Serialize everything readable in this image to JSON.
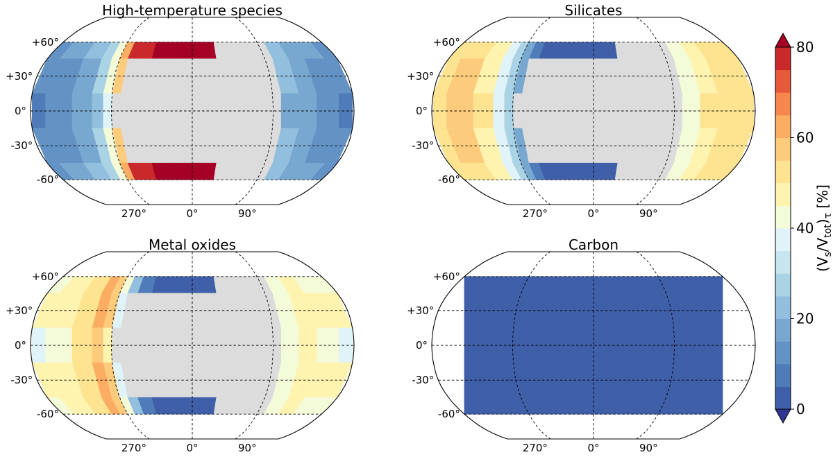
{
  "chart_data": {
    "type": "heatmap",
    "projection": "Robinson",
    "colormap": "RdYlBu_r (discrete, 5% steps)",
    "night_side_color": "#dcdcdc",
    "clevels": [
      0,
      5,
      10,
      15,
      20,
      25,
      30,
      35,
      40,
      45,
      50,
      55,
      60,
      65,
      70,
      75,
      80
    ],
    "colors": [
      "#313695",
      "#3f5fa8",
      "#4f7cb8",
      "#6392c4",
      "#78a8d0",
      "#91bfdd",
      "#aad3e6",
      "#c6e5ef",
      "#e0f3f8",
      "#f4fbd9",
      "#fff3b0",
      "#fee491",
      "#fdcb7c",
      "#fbad63",
      "#f4864e",
      "#e55a3a",
      "#c9292b",
      "#a50026"
    ],
    "longitude_ticks": [
      "270°",
      "0°",
      "90°"
    ],
    "latitude_ticks": [
      "+60°",
      "+30°",
      "0°",
      "-30°",
      "-60°"
    ],
    "colorbar": {
      "label": "(V_s/V_tot)_τ [%]",
      "ticks": [
        "0",
        "20",
        "40",
        "60",
        "80"
      ],
      "tick_values": [
        0,
        20,
        40,
        60,
        80
      ],
      "range": [
        0,
        80
      ],
      "extend": "both"
    },
    "panels": [
      {
        "title": "High-temperature species",
        "lon": [
          -180,
          -150,
          -120,
          -105,
          -95,
          -85,
          -75,
          -60,
          -40,
          -20,
          0,
          20,
          40,
          60,
          90,
          110,
          130,
          150,
          180
        ],
        "lat": [
          60,
          30,
          0,
          -30,
          -60
        ],
        "values": [
          [
            13,
            15,
            20,
            28,
            42,
            60,
            76,
            79,
            80,
            80,
            80,
            80,
            null,
            null,
            null,
            20,
            18,
            16,
            13
          ],
          [
            11,
            13,
            18,
            26,
            40,
            57,
            null,
            null,
            null,
            null,
            null,
            null,
            null,
            null,
            null,
            20,
            17,
            14,
            11
          ],
          [
            9,
            11,
            16,
            24,
            38,
            null,
            null,
            null,
            null,
            null,
            null,
            null,
            null,
            null,
            null,
            19,
            16,
            13,
            9
          ],
          [
            11,
            13,
            18,
            26,
            40,
            57,
            null,
            null,
            null,
            null,
            null,
            null,
            null,
            null,
            null,
            20,
            17,
            14,
            11
          ],
          [
            13,
            15,
            20,
            28,
            42,
            60,
            76,
            79,
            80,
            80,
            80,
            80,
            null,
            null,
            null,
            20,
            18,
            16,
            13
          ]
        ]
      },
      {
        "title": "Silicates",
        "lon": [
          -180,
          -150,
          -120,
          -105,
          -95,
          -85,
          -75,
          -60,
          -40,
          -20,
          0,
          20,
          40,
          60,
          90,
          110,
          130,
          150,
          180
        ],
        "lat": [
          60,
          30,
          0,
          -30,
          -60
        ],
        "values": [
          [
            51,
            54,
            48,
            38,
            26,
            16,
            8,
            4,
            2,
            2,
            2,
            2,
            null,
            null,
            null,
            42,
            48,
            51,
            51
          ],
          [
            53,
            55,
            49,
            38,
            27,
            18,
            null,
            null,
            null,
            null,
            null,
            null,
            null,
            null,
            null,
            43,
            49,
            52,
            53
          ],
          [
            52,
            56,
            50,
            39,
            28,
            null,
            null,
            null,
            null,
            null,
            null,
            null,
            null,
            null,
            null,
            44,
            50,
            54,
            52
          ],
          [
            53,
            55,
            49,
            38,
            27,
            18,
            null,
            null,
            null,
            null,
            null,
            null,
            null,
            null,
            null,
            43,
            49,
            52,
            53
          ],
          [
            51,
            54,
            48,
            38,
            26,
            16,
            8,
            4,
            2,
            2,
            2,
            2,
            null,
            null,
            null,
            42,
            48,
            51,
            51
          ]
        ]
      },
      {
        "title": "Metal oxides",
        "lon": [
          -180,
          -150,
          -120,
          -105,
          -95,
          -85,
          -75,
          -60,
          -40,
          -20,
          0,
          20,
          40,
          60,
          90,
          110,
          130,
          150,
          180
        ],
        "lat": [
          60,
          30,
          0,
          -30,
          -60
        ],
        "values": [
          [
            44,
            45,
            50,
            62,
            58,
            40,
            22,
            8,
            3,
            3,
            3,
            3,
            null,
            null,
            null,
            40,
            45,
            44,
            44
          ],
          [
            45,
            46,
            52,
            63,
            57,
            36,
            null,
            null,
            null,
            null,
            null,
            null,
            null,
            null,
            null,
            41,
            46,
            45,
            45
          ],
          [
            38,
            44,
            50,
            58,
            48,
            null,
            null,
            null,
            null,
            null,
            null,
            null,
            null,
            null,
            null,
            41,
            46,
            43,
            38
          ],
          [
            45,
            46,
            52,
            63,
            57,
            36,
            null,
            null,
            null,
            null,
            null,
            null,
            null,
            null,
            null,
            41,
            46,
            45,
            45
          ],
          [
            44,
            45,
            50,
            62,
            58,
            40,
            22,
            8,
            3,
            3,
            3,
            3,
            null,
            null,
            null,
            40,
            45,
            44,
            44
          ]
        ]
      },
      {
        "title": "Carbon",
        "lon": [
          -180,
          180
        ],
        "lat": [
          60,
          -60
        ],
        "values": [
          [
            1,
            1
          ],
          [
            1,
            1
          ]
        ]
      }
    ]
  }
}
